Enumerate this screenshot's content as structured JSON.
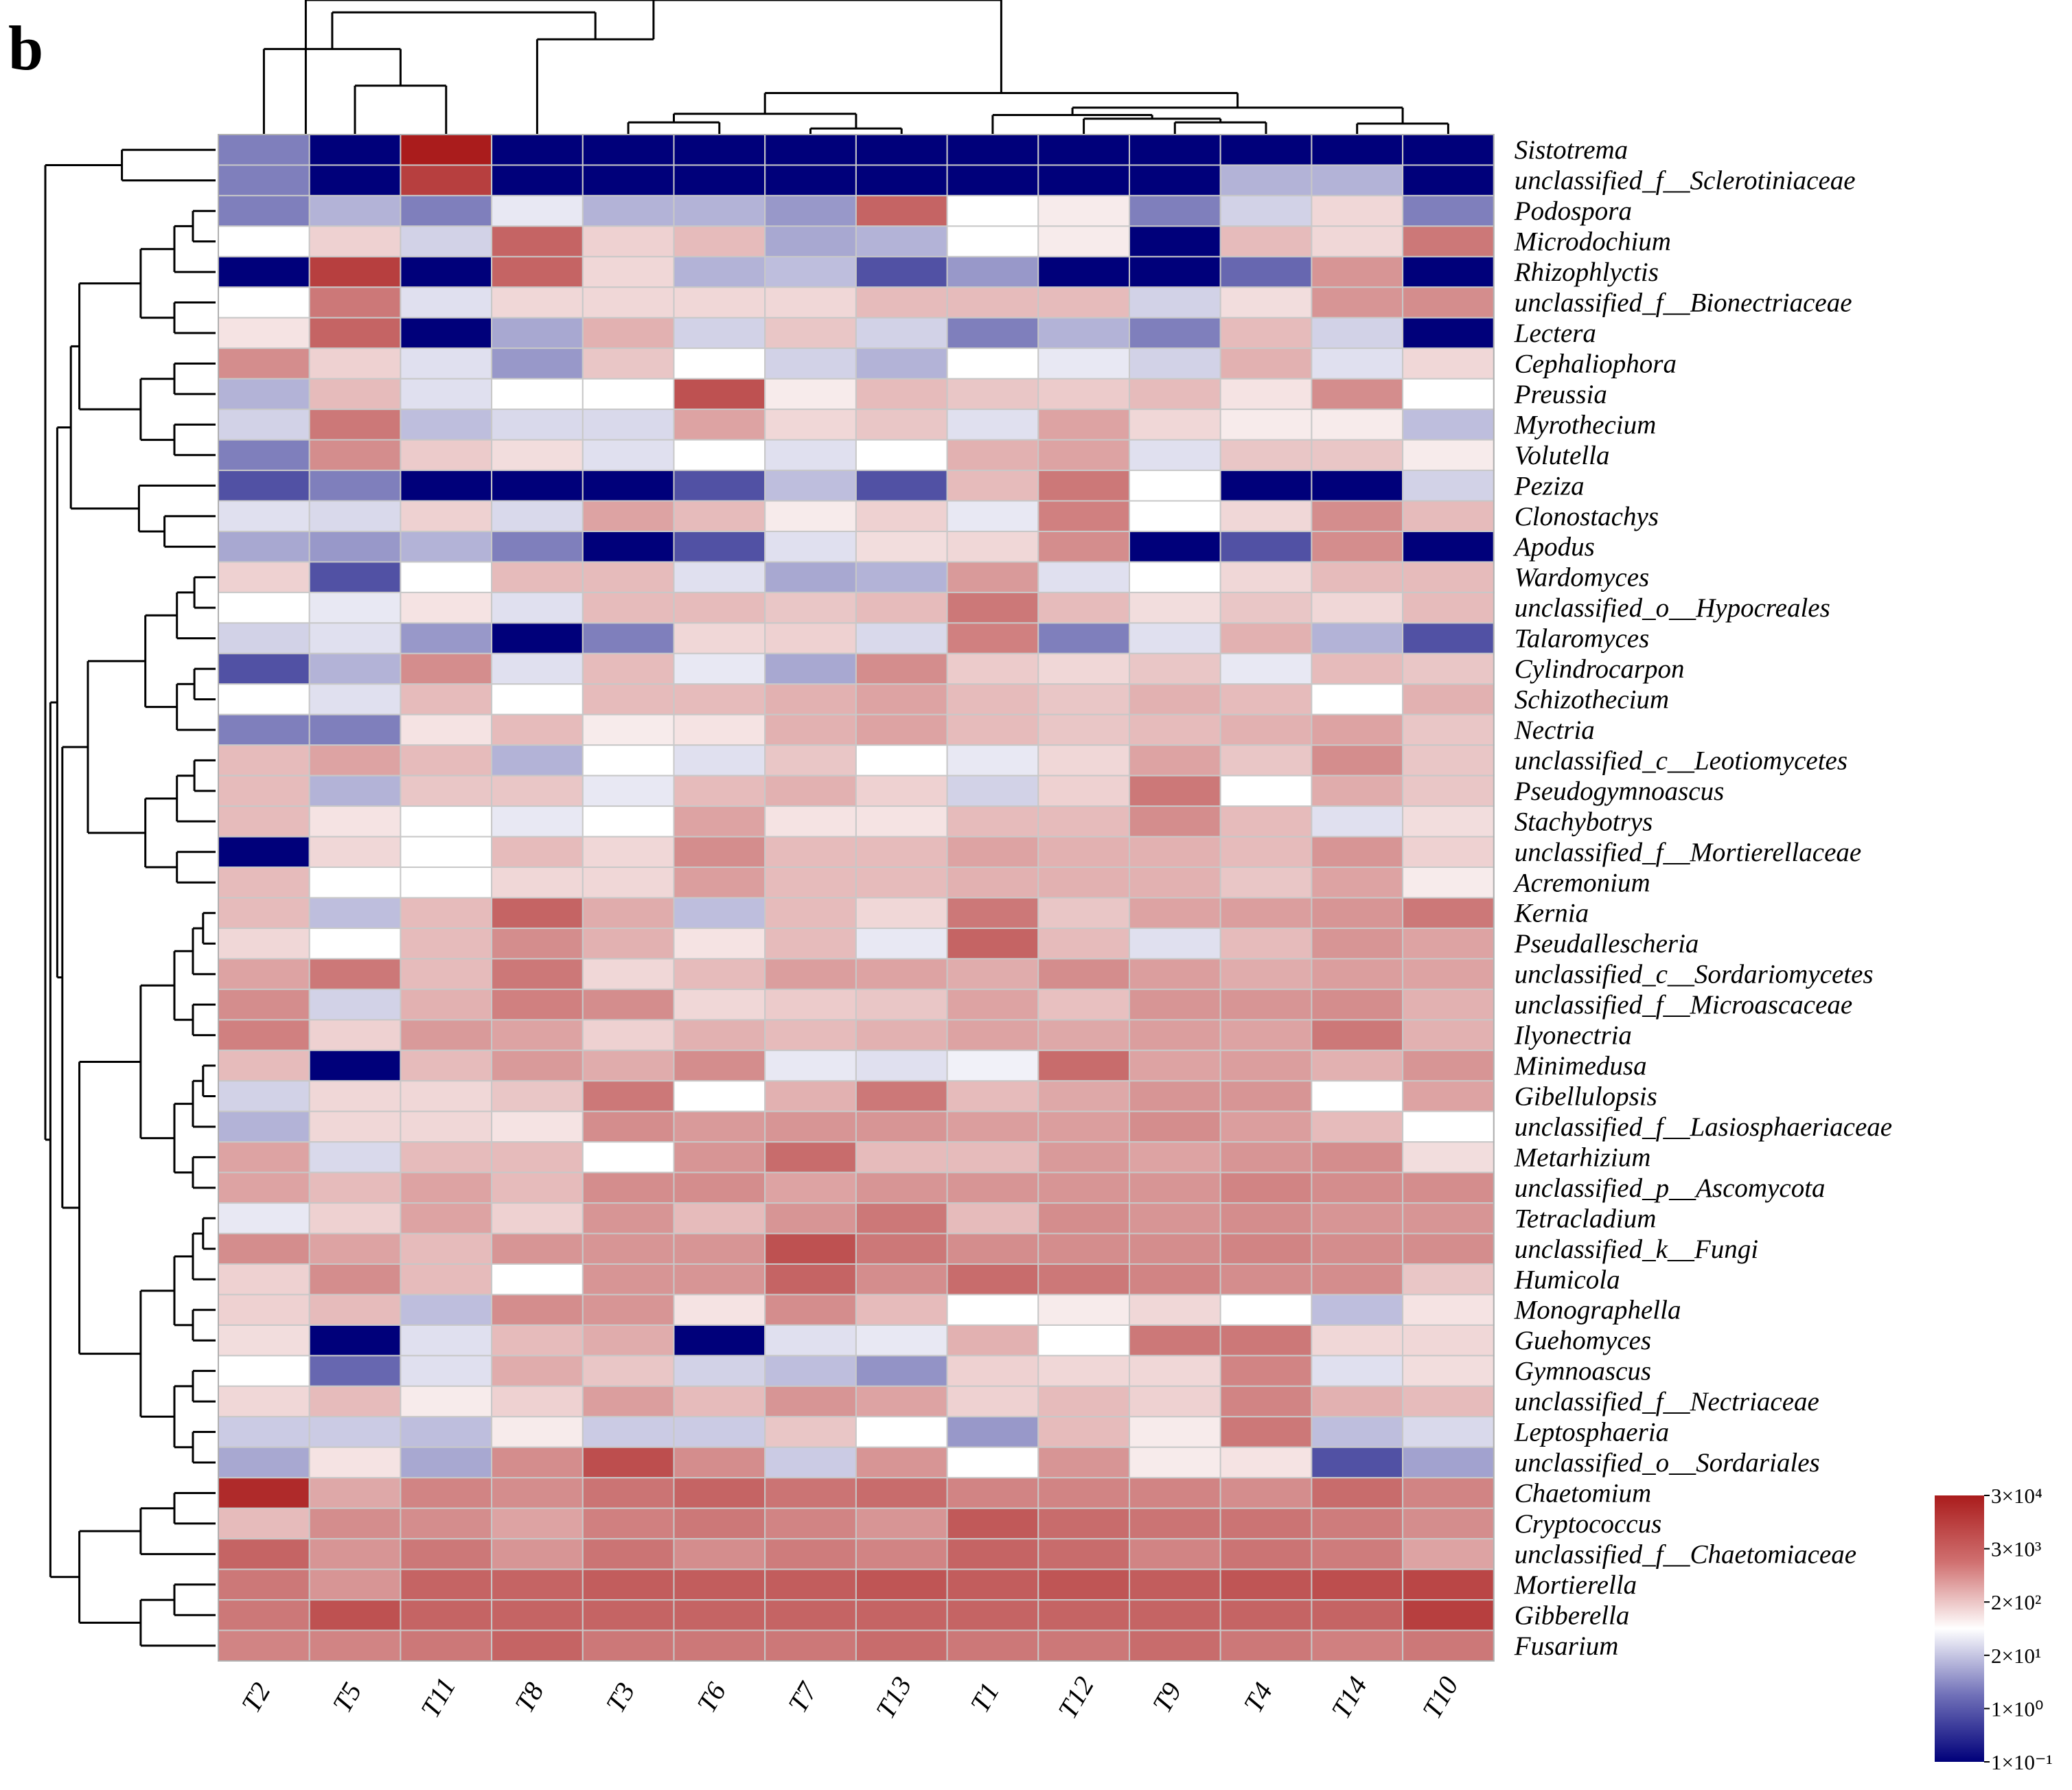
{
  "panel_label": "b",
  "chart_data": {
    "type": "heatmap",
    "title": "",
    "columns": [
      "T2",
      "T5",
      "T11",
      "T8",
      "T3",
      "T6",
      "T7",
      "T13",
      "T1",
      "T12",
      "T9",
      "T4",
      "T14",
      "T10"
    ],
    "rows": [
      "Sistotrema",
      "unclassified_f__Sclerotiniaceae",
      "Podospora",
      "Microdochium",
      "Rhizophlyctis",
      "unclassified_f__Bionectriaceae",
      "Lectera",
      "Cephaliophora",
      "Preussia",
      "Myrothecium",
      "Volutella",
      "Peziza",
      "Clonostachys",
      "Apodus",
      "Wardomyces",
      "unclassified_o__Hypocreales",
      "Talaromyces",
      "Cylindrocarpon",
      "Schizothecium",
      "Nectria",
      "unclassified_c__Leotiomycetes",
      "Pseudogymnoascus",
      "Stachybotrys",
      "unclassified_f__Mortierellaceae",
      "Acremonium",
      "Kernia",
      "Pseudallescheria",
      "unclassified_c__Sordariomycetes",
      "unclassified_f__Microascaceae",
      "Ilyonectria",
      "Minimedusa",
      "Gibellulopsis",
      "unclassified_f__Lasiosphaeriaceae",
      "Metarhizium",
      "unclassified_p__Ascomycota",
      "Tetracladium",
      "unclassified_k__Fungi",
      "Humicola",
      "Monographella",
      "Guehomyces",
      "Gymnoascus",
      "unclassified_f__Nectriaceae",
      "Leptosphaeria",
      "unclassified_o__Sordariales",
      "Chaetomium",
      "Cryptococcus",
      "unclassified_f__Chaetomiaceae",
      "Mortierella",
      "Gibberella",
      "Fusarium"
    ],
    "values": [
      [
        -2,
        -5,
        5,
        -5,
        -5,
        -5,
        -5,
        -5,
        -5,
        -5,
        -5,
        -5,
        -5,
        -5
      ],
      [
        -2,
        -5,
        4,
        -5,
        -5,
        -5,
        -5,
        -5,
        -5,
        -5,
        -5,
        -1,
        -1,
        -5
      ],
      [
        -2,
        -1,
        -2,
        -0.2,
        -1,
        -1,
        -1.5,
        3,
        0,
        0.2,
        -2,
        -0.5,
        0.5,
        -2
      ],
      [
        0,
        0.6,
        -0.5,
        3,
        0.6,
        1,
        -1.2,
        -1,
        0,
        0.2,
        -5,
        1,
        0.5,
        2.5
      ],
      [
        -5,
        4,
        -5,
        3,
        0.5,
        -1,
        -0.8,
        -3,
        -1.5,
        -5,
        -5,
        -2.5,
        1.8,
        -5
      ],
      [
        0,
        2.5,
        -0.3,
        0.5,
        0.5,
        0.5,
        0.5,
        1,
        1,
        1,
        -0.5,
        0.4,
        1.8,
        2
      ],
      [
        0.3,
        3,
        -5,
        -1.2,
        1.2,
        -0.5,
        0.8,
        -0.5,
        -2,
        -1,
        -2,
        1,
        -0.5,
        -5
      ],
      [
        2,
        0.6,
        -0.3,
        -1.5,
        0.8,
        0,
        -0.5,
        -1,
        0,
        -0.2,
        -0.5,
        1.2,
        -0.3,
        0.5
      ],
      [
        -1,
        1,
        -0.3,
        0,
        0,
        3.5,
        0.2,
        1,
        0.8,
        0.7,
        1,
        0.3,
        2,
        0
      ],
      [
        -0.5,
        2.5,
        -0.8,
        -0.4,
        -0.4,
        1.5,
        0.5,
        0.8,
        -0.3,
        1.5,
        0.5,
        0.2,
        0.2,
        -0.8
      ],
      [
        -2,
        2,
        0.7,
        0.4,
        -0.3,
        0,
        -0.3,
        0,
        1.2,
        1.5,
        -0.3,
        0.8,
        0.8,
        0.2
      ],
      [
        -3,
        -2,
        -5,
        -5,
        -5,
        -3,
        -0.8,
        -3,
        1,
        2.5,
        0,
        -5,
        -5,
        -0.5
      ],
      [
        -0.3,
        -0.4,
        0.6,
        -0.4,
        1.5,
        1,
        0.2,
        0.6,
        -0.2,
        2.3,
        0,
        0.5,
        2,
        1
      ],
      [
        -1.2,
        -1.5,
        -1,
        -2,
        -5,
        -3,
        -0.3,
        0.4,
        0.5,
        2,
        -5,
        -3,
        2,
        -5
      ],
      [
        0.6,
        -3,
        0,
        1,
        1,
        -0.3,
        -1.2,
        -1,
        1.7,
        -0.3,
        0,
        0.5,
        1,
        1
      ],
      [
        0,
        -0.2,
        0.3,
        -0.3,
        1,
        1,
        0.8,
        1,
        2.5,
        1,
        0.4,
        0.8,
        0.5,
        1
      ],
      [
        -0.5,
        -0.3,
        -1.5,
        -5,
        -2,
        0.5,
        0.6,
        -0.4,
        2.3,
        -2,
        -0.3,
        1.2,
        -1,
        -3
      ],
      [
        -3,
        -1,
        2,
        -0.3,
        1,
        -0.2,
        -1.2,
        2,
        0.7,
        0.5,
        0.8,
        -0.2,
        1,
        0.8
      ],
      [
        0,
        -0.3,
        1,
        0,
        1,
        1,
        1.2,
        1.5,
        1,
        0.8,
        1.2,
        1,
        0,
        1.2
      ],
      [
        -2,
        -2,
        0.3,
        1,
        0.2,
        0.3,
        1.2,
        1.5,
        1,
        0.8,
        1,
        1.2,
        1.5,
        0.8
      ],
      [
        1,
        1.5,
        1,
        -1,
        0,
        -0.3,
        0.8,
        0,
        -0.2,
        0.5,
        1.5,
        0.8,
        2,
        0.8
      ],
      [
        1,
        -1,
        0.8,
        0.8,
        -0.2,
        1,
        1.2,
        0.6,
        -0.5,
        0.6,
        2.5,
        0,
        1.3,
        0.8
      ],
      [
        1,
        0.3,
        0,
        -0.2,
        0,
        1.5,
        0.3,
        0.3,
        1,
        1,
        2,
        1,
        -0.3,
        0.4
      ],
      [
        -5,
        0.5,
        0,
        1,
        0.5,
        2,
        1,
        1,
        1.5,
        1.2,
        1.2,
        1,
        1.8,
        0.6
      ],
      [
        1,
        0,
        0,
        0.5,
        0.5,
        1.6,
        1,
        1,
        1.2,
        1.2,
        1.2,
        0.8,
        1.5,
        0.2
      ],
      [
        1,
        -0.8,
        1,
        3,
        1.3,
        -0.8,
        1,
        0.5,
        2.5,
        0.8,
        1.5,
        1.6,
        1.8,
        2.5
      ],
      [
        0.5,
        0,
        1,
        2,
        1.2,
        0.3,
        1,
        -0.2,
        3,
        1,
        -0.3,
        1,
        1.8,
        1.5
      ],
      [
        1.5,
        2.5,
        1,
        2.5,
        0.5,
        1,
        1.6,
        1.5,
        1.3,
        2,
        1.6,
        1.3,
        1.6,
        1.5
      ],
      [
        2,
        -0.5,
        1.2,
        2.3,
        2,
        0.5,
        0.7,
        0.8,
        1.5,
        0.9,
        1.8,
        1.8,
        2,
        1.2
      ],
      [
        2.3,
        0.6,
        1.7,
        1.5,
        0.6,
        1.2,
        1,
        1.2,
        1.5,
        1.4,
        1.6,
        1.5,
        2.5,
        1.2
      ],
      [
        1,
        -5,
        1,
        1.7,
        1.3,
        2,
        -0.2,
        -0.3,
        -0.1,
        2.8,
        1.5,
        1.6,
        1.2,
        1.8
      ],
      [
        -0.5,
        0.5,
        0.5,
        0.8,
        2.5,
        0,
        1.2,
        2.5,
        1,
        1.4,
        1.8,
        1.8,
        0,
        1.5
      ],
      [
        -1,
        0.5,
        0.5,
        0.3,
        2,
        1.7,
        1.8,
        1.8,
        1.6,
        1.6,
        2,
        1.6,
        1,
        0
      ],
      [
        1.5,
        -0.4,
        1,
        1,
        0,
        1.8,
        2.8,
        1,
        1,
        1.7,
        1.5,
        1.8,
        2,
        0.4
      ],
      [
        1.5,
        1,
        1.5,
        1,
        2,
        2,
        1.5,
        1.8,
        1.8,
        1.8,
        1.8,
        2.2,
        2,
        2
      ],
      [
        -0.2,
        0.6,
        1.5,
        0.6,
        1.8,
        1,
        1.8,
        2.5,
        1,
        2,
        1.8,
        2,
        1.8,
        1.8
      ],
      [
        2,
        1.5,
        1,
        1.8,
        1.8,
        1.8,
        3.5,
        2.5,
        2,
        2,
        2,
        2.2,
        2,
        2
      ],
      [
        0.6,
        2,
        1,
        0,
        1.8,
        1.8,
        3,
        2,
        2.8,
        2.5,
        2.2,
        2,
        2,
        0.8
      ],
      [
        0.6,
        1,
        -0.8,
        2,
        1.8,
        0.3,
        2,
        1,
        0,
        0.2,
        0.5,
        0,
        -0.8,
        0.3
      ],
      [
        0.4,
        -5,
        -0.3,
        1,
        1.3,
        -5,
        -0.3,
        -0.2,
        1.2,
        0,
        2.5,
        2.5,
        0.5,
        0.5
      ],
      [
        0,
        -2.5,
        -0.3,
        1.3,
        0.8,
        -0.5,
        -0.8,
        -1.6,
        0.6,
        0.5,
        0.5,
        2.2,
        -0.3,
        0.4
      ],
      [
        0.5,
        1,
        0.2,
        0.6,
        1.6,
        1,
        1.8,
        1.5,
        0.6,
        1,
        0.6,
        2.2,
        1.2,
        1
      ],
      [
        -0.6,
        -0.6,
        -0.8,
        0.2,
        -0.6,
        -0.6,
        0.8,
        0,
        -1.5,
        1,
        0.2,
        2.5,
        -0.8,
        -0.4
      ],
      [
        -1.2,
        0.3,
        -1.2,
        2,
        3.6,
        2,
        -0.6,
        1.8,
        0,
        1.8,
        0.2,
        0.3,
        -3,
        -1.3
      ],
      [
        4.6,
        1.4,
        2.2,
        2,
        2.6,
        3,
        2.6,
        2.8,
        2.2,
        2.2,
        2.2,
        2,
        2.8,
        2.2
      ],
      [
        1,
        2,
        2,
        1.5,
        2.3,
        2.5,
        2.2,
        1.8,
        3.3,
        2.8,
        2.6,
        2.6,
        2.4,
        2
      ],
      [
        3,
        1.8,
        2.5,
        1.8,
        2.6,
        2,
        2.4,
        2.2,
        3,
        2.8,
        2.2,
        2.6,
        2.4,
        1.5
      ],
      [
        2.5,
        1.8,
        3,
        3,
        3.2,
        3.2,
        3.2,
        3.4,
        3.2,
        3.4,
        3.2,
        3.4,
        3.6,
        3.8
      ],
      [
        2.5,
        3.5,
        3,
        3,
        3,
        3,
        3,
        3,
        3,
        3,
        3,
        3,
        3,
        4
      ],
      [
        2.2,
        2.2,
        2.5,
        3,
        2.5,
        2.5,
        2.5,
        2.8,
        2.5,
        2.5,
        2.8,
        2.5,
        2.3,
        2.5
      ]
    ],
    "scale": {
      "type": "log",
      "ticks": [
        "3×10⁴",
        "3×10³",
        "2×10²",
        "2×10¹",
        "1×10⁰",
        "1×10⁻¹"
      ],
      "colors": {
        "low": "#00007a",
        "mid": "#ffffff",
        "high": "#aa1c1c"
      }
    },
    "xlabel": "",
    "ylabel": ""
  }
}
